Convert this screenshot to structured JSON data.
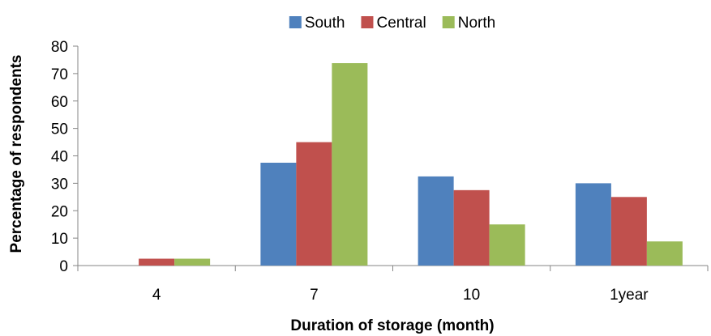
{
  "chart_data": {
    "type": "bar",
    "title": "",
    "xlabel": "Duration of storage (month)",
    "ylabel": "Percentage of respondents",
    "categories": [
      "4",
      "7",
      "10",
      "1year"
    ],
    "series": [
      {
        "name": "South",
        "color": "#4F81BD",
        "values": [
          0,
          37.5,
          32.5,
          30
        ]
      },
      {
        "name": "Central",
        "color": "#C0504D",
        "values": [
          2.5,
          45,
          27.5,
          25
        ]
      },
      {
        "name": "North",
        "color": "#9BBB59",
        "values": [
          2.5,
          73.8,
          15,
          8.8
        ]
      }
    ],
    "ylim": [
      0,
      80
    ],
    "yticks": [
      0,
      10,
      20,
      30,
      40,
      50,
      60,
      70,
      80
    ],
    "grid": false,
    "legend_position": "top"
  }
}
